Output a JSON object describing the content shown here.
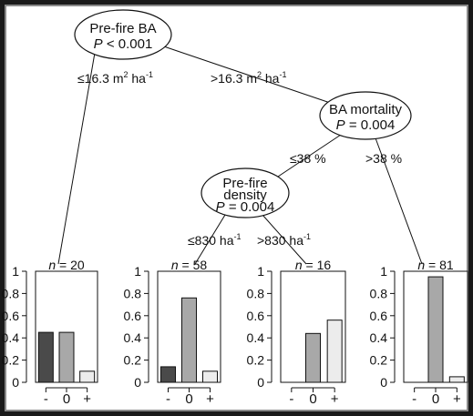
{
  "tree": {
    "nodes": [
      {
        "id": "root",
        "lines": [
          {
            "text": "Pre-fire BA"
          },
          {
            "prefix": "P",
            "text": " < 0.001"
          }
        ]
      },
      {
        "id": "bam",
        "lines": [
          {
            "text": "BA mortality"
          },
          {
            "prefix": "P",
            "text": " = 0.004"
          }
        ]
      },
      {
        "id": "dens",
        "lines": [
          {
            "text": "Pre-fire"
          },
          {
            "text": "density"
          },
          {
            "prefix": "P",
            "text": " = 0.004"
          }
        ]
      }
    ],
    "edges": {
      "root_left": {
        "pre": "≤16.3 m",
        "sup": "2",
        "post": " ha",
        "sup2": "-1"
      },
      "root_right": {
        "pre": ">16.3 m",
        "sup": "2",
        "post": " ha",
        "sup2": "-1"
      },
      "bam_left": {
        "pre": "≤38 %"
      },
      "bam_right": {
        "pre": ">38 %"
      },
      "dens_left": {
        "pre": "≤830 ha",
        "sup": "-1"
      },
      "dens_right": {
        "pre": ">830 ha",
        "sup": "-1"
      }
    },
    "leaves": [
      {
        "n_label": "n",
        "n_value": " = 20"
      },
      {
        "n_label": "n",
        "n_value": " = 58"
      },
      {
        "n_label": "n",
        "n_value": " = 16"
      },
      {
        "n_label": "n",
        "n_value": " = 81"
      }
    ]
  },
  "chart_data": {
    "type": "bar",
    "categories": [
      "-",
      "0",
      "+"
    ],
    "ylim": [
      0,
      1
    ],
    "yticks": [
      "0",
      "0.2",
      "0.4",
      "0.6",
      "0.8",
      "1"
    ],
    "bar_colors": [
      "#4a4a4a",
      "#a8a8a8",
      "#ececec"
    ],
    "panels": [
      {
        "n": 20,
        "values": [
          0.45,
          0.45,
          0.1
        ]
      },
      {
        "n": 58,
        "values": [
          0.14,
          0.76,
          0.1
        ]
      },
      {
        "n": 16,
        "values": [
          0.0,
          0.44,
          0.56
        ]
      },
      {
        "n": 81,
        "values": [
          0.0,
          0.95,
          0.05
        ]
      }
    ]
  }
}
